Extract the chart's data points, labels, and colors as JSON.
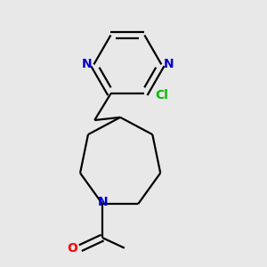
{
  "background_color": "#e8e8e8",
  "bond_color": "#000000",
  "N_color": "#0000cc",
  "Cl_color": "#00bb00",
  "O_color": "#ff0000",
  "line_width": 1.6,
  "font_size_atoms": 10,
  "fig_size": [
    3.0,
    3.0
  ],
  "dpi": 100,
  "xlim": [
    0.15,
    0.85
  ],
  "ylim": [
    0.05,
    0.95
  ]
}
